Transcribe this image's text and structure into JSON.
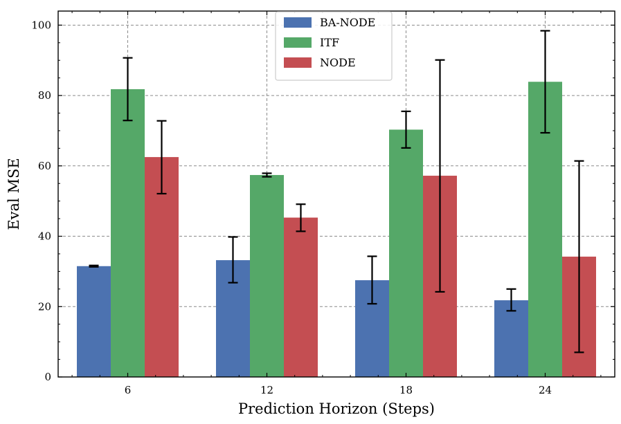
{
  "chart_data": {
    "type": "bar",
    "title": "",
    "xlabel": "Prediction Horizon (Steps)",
    "ylabel": "Eval MSE",
    "categories": [
      "6",
      "12",
      "18",
      "24"
    ],
    "ylim": [
      0,
      104
    ],
    "yticks": [
      0,
      20,
      40,
      60,
      80,
      100
    ],
    "grid": true,
    "legend_position": "top-center",
    "series": [
      {
        "name": "BA-NODE",
        "color": "#4c72b0",
        "values": [
          31.5,
          33.2,
          27.5,
          21.8
        ],
        "err_low": [
          31.3,
          26.8,
          20.8,
          18.8
        ],
        "err_high": [
          31.7,
          39.8,
          34.3,
          25.0
        ]
      },
      {
        "name": "ITF",
        "color": "#55a868",
        "values": [
          81.8,
          57.4,
          70.3,
          83.9
        ],
        "err_low": [
          72.9,
          56.9,
          65.1,
          69.4
        ],
        "err_high": [
          90.7,
          57.9,
          75.5,
          98.4
        ]
      },
      {
        "name": "NODE",
        "color": "#c44e52",
        "values": [
          62.5,
          45.3,
          57.2,
          34.2
        ],
        "err_low": [
          52.1,
          41.4,
          24.2,
          7.0
        ],
        "err_high": [
          72.8,
          49.1,
          90.1,
          61.4
        ]
      }
    ]
  }
}
